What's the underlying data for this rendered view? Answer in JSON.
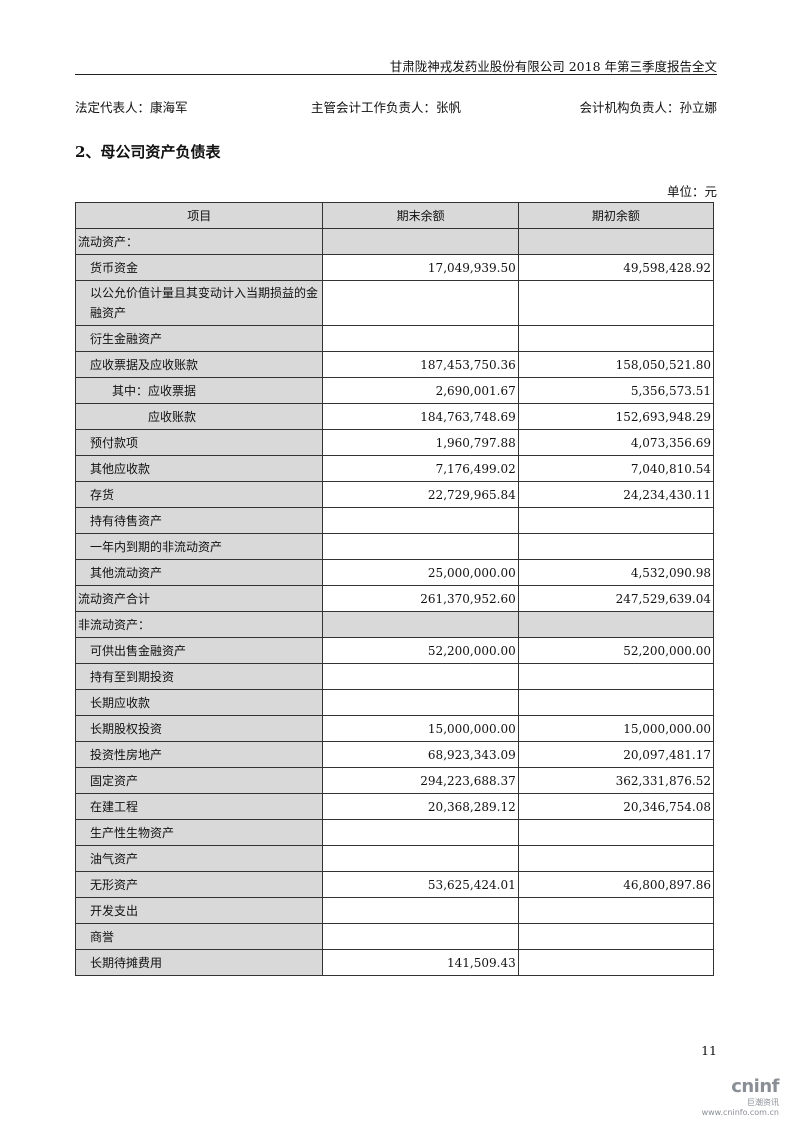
{
  "header": "甘肃陇神戎发药业股份有限公司 2018 年第三季度报告全文",
  "signatures": [
    "法定代表人：康海军",
    "主管会计工作负责人：张帆",
    "会计机构负责人：孙立娜"
  ],
  "title": "2、母公司资产负债表",
  "unit": "单位：元",
  "columns": [
    "项目",
    "期末余额",
    "期初余额"
  ],
  "rows": [
    {
      "label": "流动资产：",
      "end": "",
      "begin": "",
      "type": "section",
      "indent": 0
    },
    {
      "label": "货币资金",
      "end": "17,049,939.50",
      "begin": "49,598,428.92",
      "indent": 1
    },
    {
      "label": "以公允价值计量且其变动计入当期损益的金融资产",
      "end": "",
      "begin": "",
      "indent": 1,
      "tall": true
    },
    {
      "label": "衍生金融资产",
      "end": "",
      "begin": "",
      "indent": 1
    },
    {
      "label": "应收票据及应收账款",
      "end": "187,453,750.36",
      "begin": "158,050,521.80",
      "indent": 1
    },
    {
      "label": "其中：应收票据",
      "end": "2,690,001.67",
      "begin": "5,356,573.51",
      "indent": 2
    },
    {
      "label": "应收账款",
      "end": "184,763,748.69",
      "begin": "152,693,948.29",
      "indent": 3
    },
    {
      "label": "预付款项",
      "end": "1,960,797.88",
      "begin": "4,073,356.69",
      "indent": 1
    },
    {
      "label": "其他应收款",
      "end": "7,176,499.02",
      "begin": "7,040,810.54",
      "indent": 1
    },
    {
      "label": "存货",
      "end": "22,729,965.84",
      "begin": "24,234,430.11",
      "indent": 1
    },
    {
      "label": "持有待售资产",
      "end": "",
      "begin": "",
      "indent": 1
    },
    {
      "label": "一年内到期的非流动资产",
      "end": "",
      "begin": "",
      "indent": 1
    },
    {
      "label": "其他流动资产",
      "end": "25,000,000.00",
      "begin": "4,532,090.98",
      "indent": 1
    },
    {
      "label": "流动资产合计",
      "end": "261,370,952.60",
      "begin": "247,529,639.04",
      "indent": 0
    },
    {
      "label": "非流动资产：",
      "end": "",
      "begin": "",
      "type": "section",
      "indent": 0
    },
    {
      "label": "可供出售金融资产",
      "end": "52,200,000.00",
      "begin": "52,200,000.00",
      "indent": 1
    },
    {
      "label": "持有至到期投资",
      "end": "",
      "begin": "",
      "indent": 1
    },
    {
      "label": "长期应收款",
      "end": "",
      "begin": "",
      "indent": 1
    },
    {
      "label": "长期股权投资",
      "end": "15,000,000.00",
      "begin": "15,000,000.00",
      "indent": 1
    },
    {
      "label": "投资性房地产",
      "end": "68,923,343.09",
      "begin": "20,097,481.17",
      "indent": 1
    },
    {
      "label": "固定资产",
      "end": "294,223,688.37",
      "begin": "362,331,876.52",
      "indent": 1
    },
    {
      "label": "在建工程",
      "end": "20,368,289.12",
      "begin": "20,346,754.08",
      "indent": 1
    },
    {
      "label": "生产性生物资产",
      "end": "",
      "begin": "",
      "indent": 1
    },
    {
      "label": "油气资产",
      "end": "",
      "begin": "",
      "indent": 1
    },
    {
      "label": "无形资产",
      "end": "53,625,424.01",
      "begin": "46,800,897.86",
      "indent": 1
    },
    {
      "label": "开发支出",
      "end": "",
      "begin": "",
      "indent": 1
    },
    {
      "label": "商誉",
      "end": "",
      "begin": "",
      "indent": 1
    },
    {
      "label": "长期待摊费用",
      "end": "141,509.43",
      "begin": "",
      "indent": 1
    }
  ],
  "page_number": "11",
  "watermark": {
    "brand": "cninf",
    "cn": "巨潮资讯",
    "url": "www.cninfo.com.cn"
  }
}
